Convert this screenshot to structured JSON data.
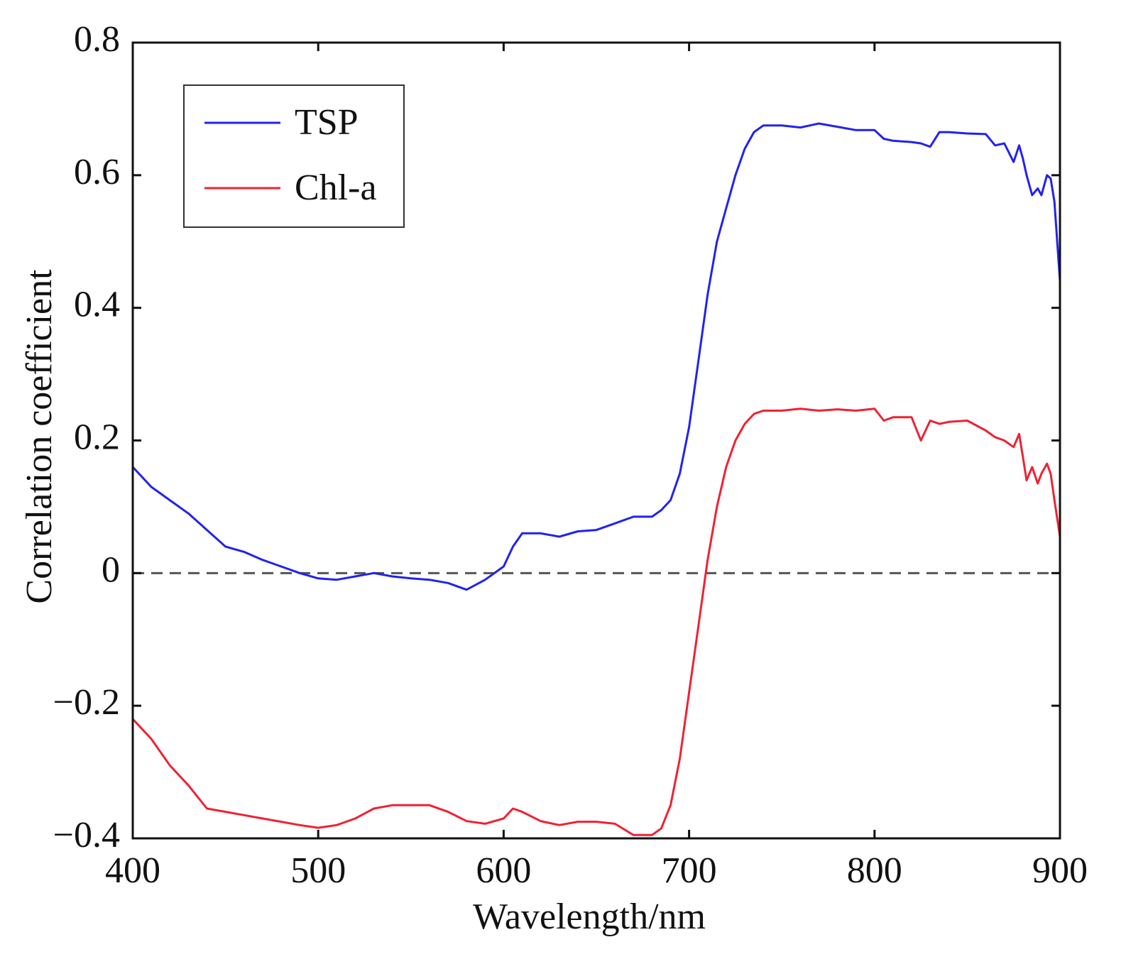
{
  "chart_data": {
    "type": "line",
    "xlabel": "Wavelength/nm",
    "ylabel": "Correlation coefficient",
    "x": [
      400,
      410,
      420,
      430,
      440,
      450,
      460,
      470,
      480,
      490,
      500,
      510,
      520,
      530,
      540,
      550,
      560,
      570,
      580,
      590,
      600,
      605,
      610,
      620,
      630,
      640,
      650,
      660,
      670,
      680,
      685,
      690,
      695,
      700,
      705,
      710,
      715,
      720,
      725,
      730,
      735,
      740,
      750,
      760,
      770,
      780,
      790,
      800,
      805,
      810,
      820,
      825,
      830,
      835,
      840,
      850,
      860,
      865,
      870,
      875,
      878,
      880,
      882,
      885,
      888,
      890,
      893,
      895,
      897,
      900
    ],
    "series": [
      {
        "name": "TSP",
        "color": "#2222ee",
        "values": [
          0.16,
          0.13,
          0.11,
          0.09,
          0.065,
          0.04,
          0.032,
          0.02,
          0.01,
          0.0,
          -0.008,
          -0.01,
          -0.005,
          0.0,
          -0.005,
          -0.008,
          -0.01,
          -0.015,
          -0.025,
          -0.01,
          0.01,
          0.04,
          0.06,
          0.06,
          0.055,
          0.063,
          0.065,
          0.075,
          0.085,
          0.085,
          0.095,
          0.11,
          0.15,
          0.22,
          0.32,
          0.42,
          0.5,
          0.55,
          0.6,
          0.64,
          0.665,
          0.675,
          0.675,
          0.672,
          0.678,
          0.673,
          0.668,
          0.668,
          0.655,
          0.652,
          0.65,
          0.648,
          0.643,
          0.665,
          0.665,
          0.663,
          0.662,
          0.645,
          0.648,
          0.62,
          0.645,
          0.625,
          0.6,
          0.57,
          0.58,
          0.57,
          0.6,
          0.595,
          0.56,
          0.44
        ]
      },
      {
        "name": "Chl-a",
        "color": "#ee2233",
        "values": [
          -0.22,
          -0.25,
          -0.29,
          -0.32,
          -0.355,
          -0.36,
          -0.365,
          -0.37,
          -0.375,
          -0.38,
          -0.384,
          -0.38,
          -0.37,
          -0.355,
          -0.35,
          -0.35,
          -0.35,
          -0.36,
          -0.374,
          -0.378,
          -0.37,
          -0.355,
          -0.36,
          -0.374,
          -0.38,
          -0.375,
          -0.375,
          -0.378,
          -0.395,
          -0.395,
          -0.385,
          -0.35,
          -0.28,
          -0.18,
          -0.08,
          0.02,
          0.1,
          0.16,
          0.2,
          0.225,
          0.24,
          0.245,
          0.245,
          0.248,
          0.245,
          0.247,
          0.245,
          0.248,
          0.23,
          0.235,
          0.235,
          0.2,
          0.23,
          0.225,
          0.228,
          0.23,
          0.215,
          0.205,
          0.2,
          0.19,
          0.21,
          0.175,
          0.14,
          0.16,
          0.135,
          0.15,
          0.165,
          0.15,
          0.11,
          0.055
        ]
      }
    ],
    "xlim": [
      400,
      900
    ],
    "xticks": [
      400,
      500,
      600,
      700,
      800,
      900
    ],
    "ylim": [
      -0.4,
      0.8
    ],
    "yticks": [
      {
        "value": -0.4,
        "label": "−0.4"
      },
      {
        "value": -0.2,
        "label": "−0.2"
      },
      0,
      0.2,
      0.4,
      0.6,
      0.8
    ],
    "reference_line": {
      "y": 0,
      "color": "#555555",
      "style": "dashed"
    },
    "legend": "upper left",
    "grid": false
  }
}
